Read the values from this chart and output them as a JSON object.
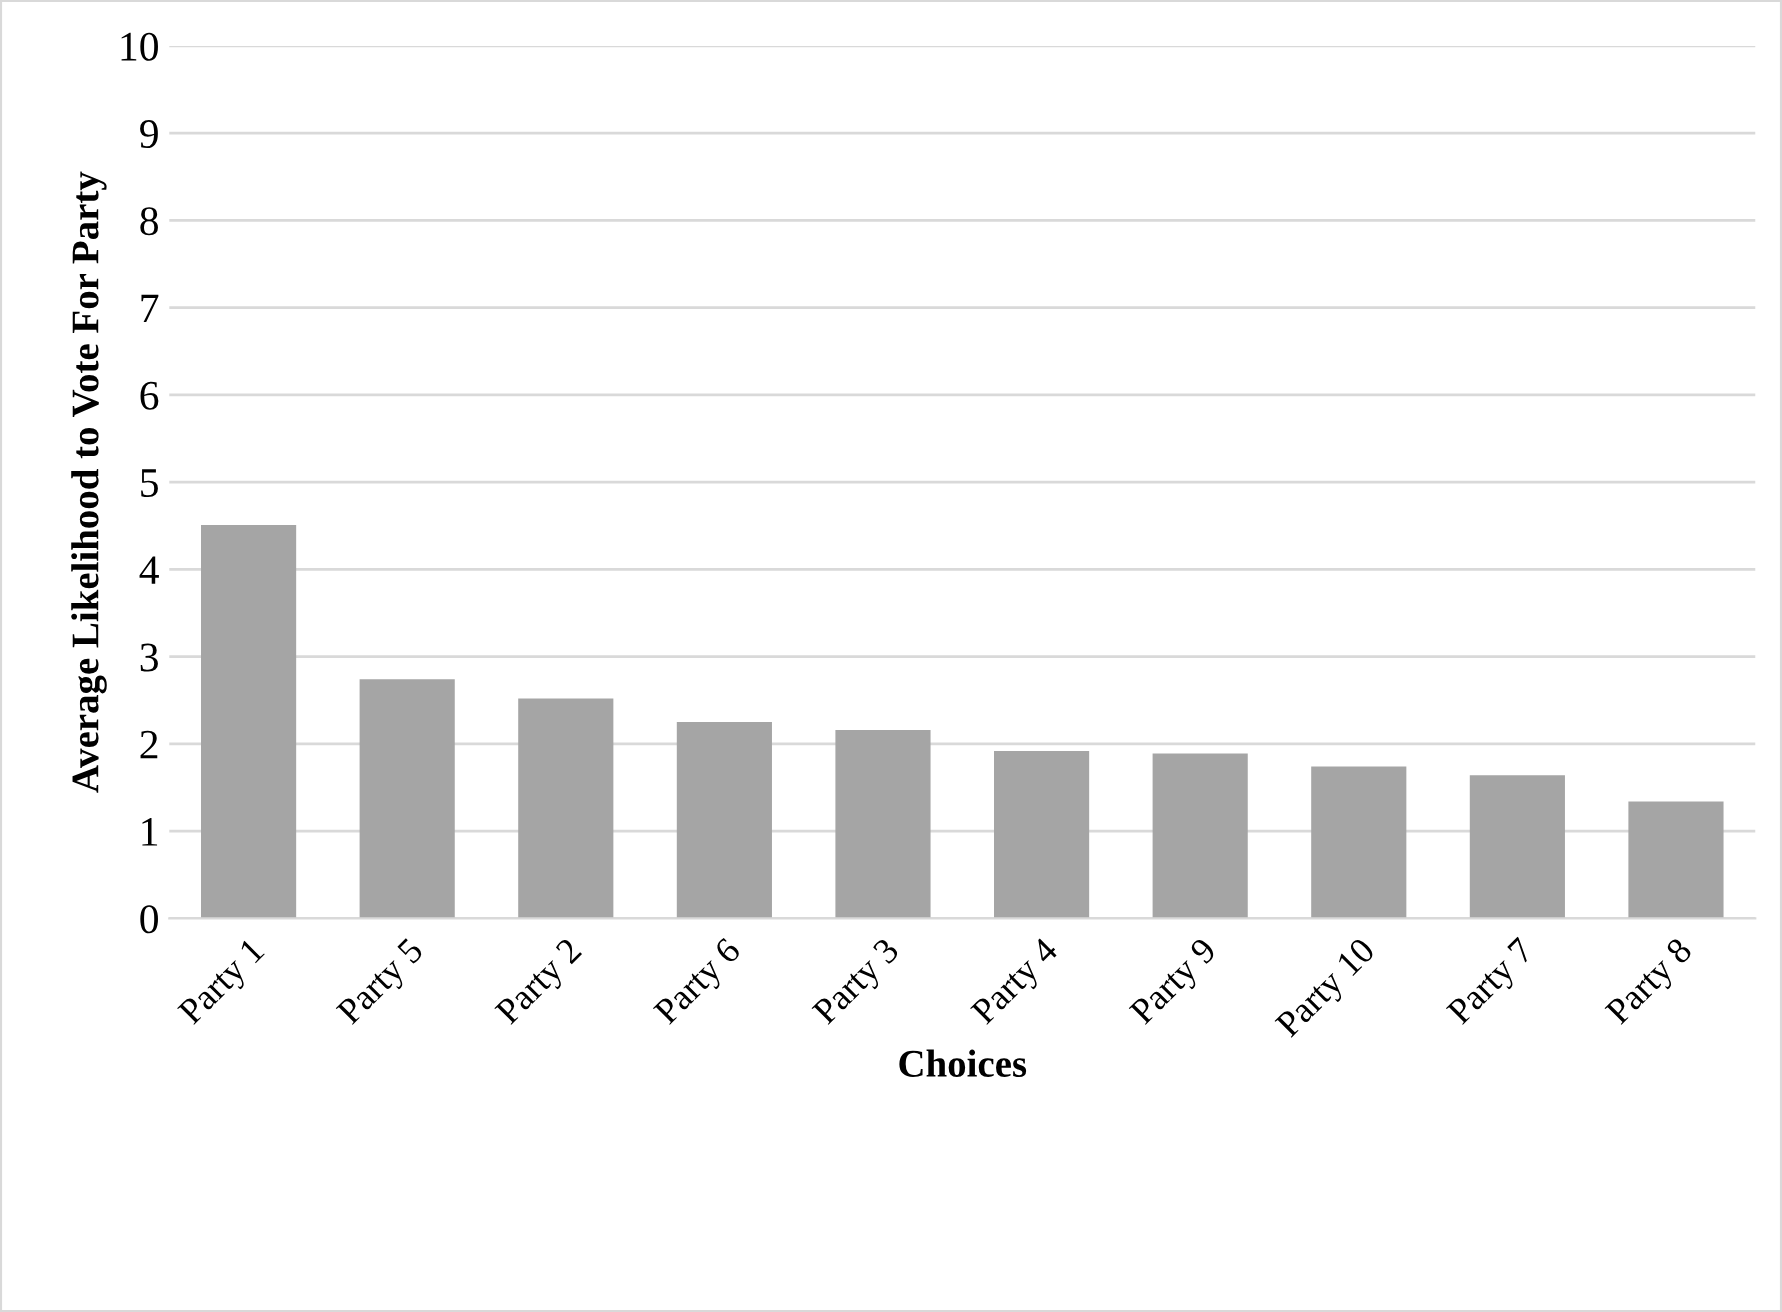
{
  "chart_data": {
    "type": "bar",
    "xlabel": "Choices",
    "ylabel": "Average Likelihood to Vote For Party",
    "categories": [
      "Party 1",
      "Party 5",
      "Party 2",
      "Party 6",
      "Party 3",
      "Party 4",
      "Party 9",
      "Party 10",
      "Party 7",
      "Party 8"
    ],
    "values": [
      4.51,
      2.74,
      2.52,
      2.25,
      2.16,
      1.92,
      1.89,
      1.74,
      1.64,
      1.34
    ],
    "color": "#a5a5a5",
    "ylim": [
      0,
      10
    ],
    "yticks": [
      0,
      1,
      2,
      3,
      4,
      5,
      6,
      7,
      8,
      9,
      10
    ],
    "grid": "y",
    "legend": false
  }
}
